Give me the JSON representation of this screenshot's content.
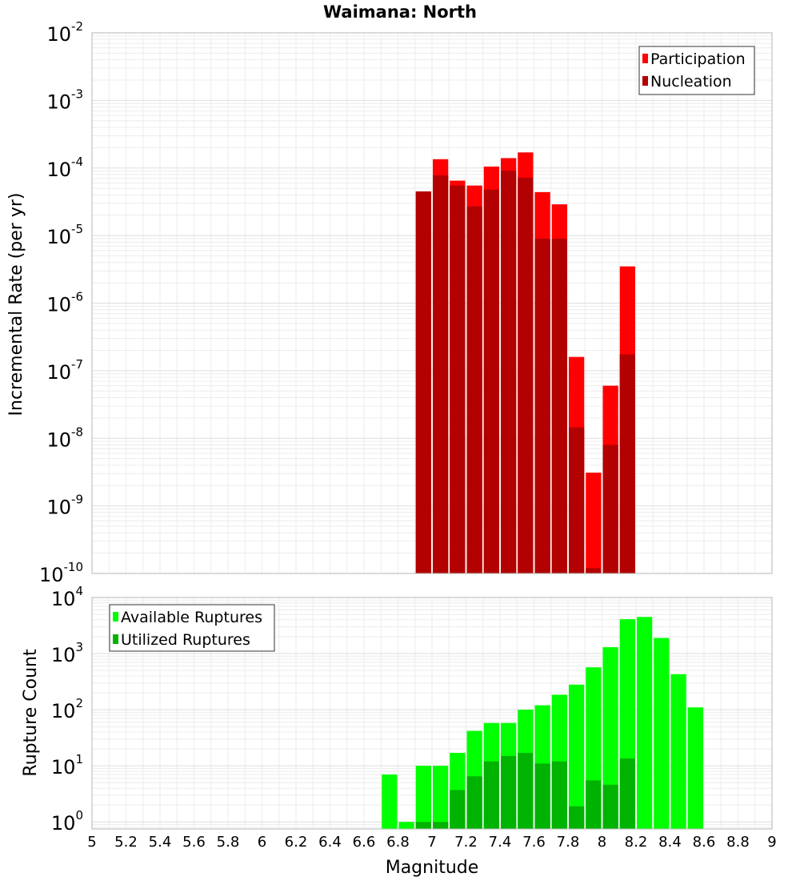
{
  "chart_data": [
    {
      "type": "bar",
      "title": "Waimana: North",
      "xlabel": "",
      "ylabel": "Incremental Rate (per yr)",
      "yscale": "log",
      "xlim": [
        5,
        9
      ],
      "ylim": [
        1e-10,
        0.01
      ],
      "y_tick_bases": [
        "10",
        "10",
        "10",
        "10",
        "10",
        "10",
        "10",
        "10",
        "10"
      ],
      "y_tick_exponents": [
        "-10",
        "-9",
        "-8",
        "-7",
        "-6",
        "-5",
        "-4",
        "-3",
        "-2"
      ],
      "bar_width": 0.1,
      "grid": true,
      "legend_position": "top-right",
      "legend": [
        "Participation",
        "Nucleation"
      ],
      "colors": {
        "Participation": "#ff0000",
        "Nucleation": "#b30000"
      },
      "x": [
        6.95,
        7.05,
        7.15,
        7.25,
        7.35,
        7.45,
        7.55,
        7.65,
        7.75,
        7.85,
        7.95,
        8.05,
        8.15
      ],
      "series": [
        {
          "name": "Participation",
          "values": [
            4.5e-05,
            0.000135,
            6.5e-05,
            5.5e-05,
            0.000105,
            0.00014,
            0.00017,
            4.4e-05,
            2.9e-05,
            1.6e-07,
            3.1e-09,
            6e-08,
            3.5e-06
          ]
        },
        {
          "name": "Nucleation",
          "values": [
            4.5e-05,
            7.8e-05,
            5.5e-05,
            2.7e-05,
            4.8e-05,
            9.1e-05,
            7.2e-05,
            9e-06,
            9e-06,
            1.45e-08,
            1.2e-10,
            8e-09,
            1.75e-07
          ]
        }
      ]
    },
    {
      "type": "bar",
      "title": "",
      "xlabel": "Magnitude",
      "ylabel": "Rupture Count",
      "yscale": "log",
      "xlim": [
        5,
        9
      ],
      "ylim": [
        0.75,
        10000.0
      ],
      "y_tick_bases": [
        "10",
        "10",
        "10",
        "10",
        "10"
      ],
      "y_tick_exponents": [
        "0",
        "1",
        "2",
        "3",
        "4"
      ],
      "x_tick_labels": [
        "5",
        "5.2",
        "5.4",
        "5.6",
        "5.8",
        "6",
        "6.2",
        "6.4",
        "6.6",
        "6.8",
        "7",
        "7.2",
        "7.4",
        "7.6",
        "7.8",
        "8",
        "8.2",
        "8.4",
        "8.6",
        "8.8",
        "9"
      ],
      "bar_width": 0.1,
      "grid": true,
      "legend_position": "top-left",
      "legend": [
        "Available Ruptures",
        "Utilized Ruptures"
      ],
      "colors": {
        "Available Ruptures": "#00ff00",
        "Utilized Ruptures": "#00b300"
      },
      "x": [
        6.75,
        6.85,
        6.95,
        7.05,
        7.15,
        7.25,
        7.35,
        7.45,
        7.55,
        7.65,
        7.75,
        7.85,
        7.95,
        8.05,
        8.15,
        8.25,
        8.35,
        8.45,
        8.55
      ],
      "series": [
        {
          "name": "Available Ruptures",
          "values": [
            7,
            1,
            10,
            10,
            17,
            42,
            58,
            58,
            100,
            120,
            185,
            280,
            570,
            1300,
            4100,
            4500,
            1900,
            430,
            110
          ]
        },
        {
          "name": "Utilized Ruptures",
          "values": [
            0,
            0,
            1,
            1,
            3.7,
            6.5,
            12,
            15,
            17,
            11,
            12,
            1.9,
            5.5,
            4.6,
            13.5,
            0,
            0,
            0,
            0
          ]
        }
      ]
    }
  ]
}
